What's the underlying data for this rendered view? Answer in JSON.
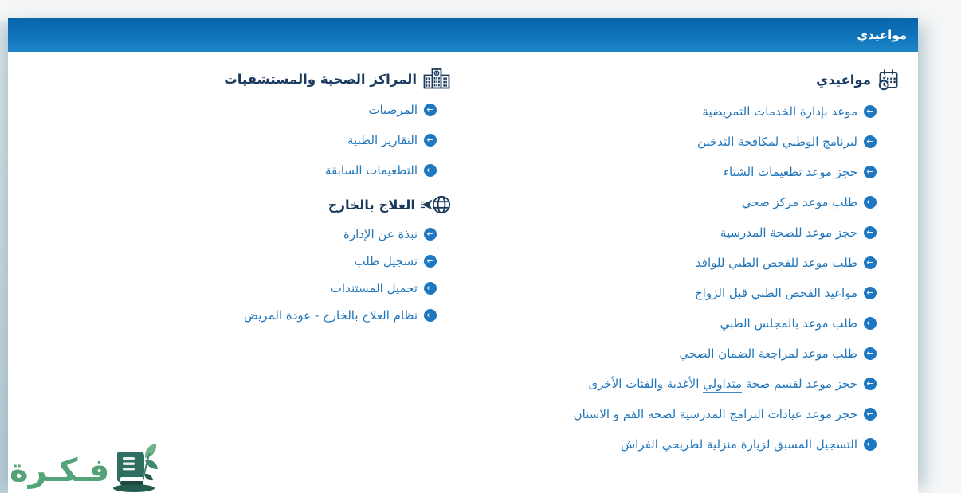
{
  "header": {
    "title": "مواعيدي"
  },
  "sections": {
    "appointments": {
      "heading": "مواعيدي",
      "icon": "calendar-clock-icon",
      "items": [
        "موعد بإدارة الخدمات التمريضية",
        "لبرنامج الوطني لمكافحة التدخين",
        "حجز موعد تطعيمات الشتاء",
        "طلب موعد مركز صحي",
        "حجز موعد للصحة المدرسية",
        "طلب موعد للفحص الطبي للوافد",
        "مواعيد الفحص الطبي قبل الزواج",
        "طلب موعد بالمجلس الطبي",
        "طلب موعد لمراجعة الضمان الصحي",
        "حجز موعد لقسم صحة متداولي الأغذية والفئات الأخرى",
        "حجز موعد عيادات البرامج المدرسية لصحه الفم و الاسنان",
        "التسجيل المسبق لزيارة منزلية لطريحي الفراش"
      ]
    },
    "centers": {
      "heading": "المراكز الصحية والمستشفيات",
      "icon": "hospital-icon",
      "items": [
        "المرضيات",
        "التقارير الطبية",
        "التطعيمات السابقة"
      ]
    },
    "abroad": {
      "heading": "العلاج بالخارج",
      "icon": "globe-plane-icon",
      "items": [
        "نبذة عن الإدارة",
        "تسجيل طلب",
        "تحميل المستندات",
        "نظام العلاج بالخارج - عودة المريض"
      ]
    }
  },
  "emphasis": {
    "bind": "sections.appointments.items.9",
    "word": "متداولي"
  },
  "watermark": {
    "text": "فـكـرة"
  },
  "colors": {
    "header_blue_top": "#0a65ab",
    "header_blue_bottom": "#1f87c8",
    "link_blue": "#2176bc",
    "arrow_circle_blue": "#1d78c1",
    "heading_navy": "#1a3a5f",
    "logo_green": "#55a479",
    "logo_book_teal": "#2f6e60",
    "page_background": "#f4f6f7"
  }
}
